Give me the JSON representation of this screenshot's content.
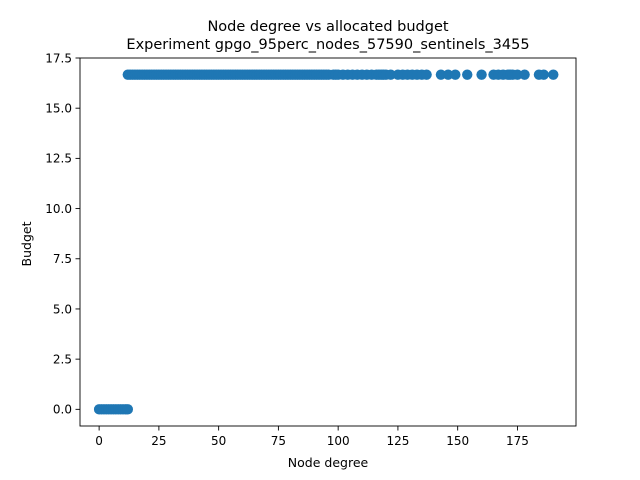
{
  "chart_data": {
    "type": "scatter",
    "title": "Node degree vs allocated budget",
    "subtitle": "Experiment gpgo_95perc_nodes_57590_sentinels_3455",
    "xlabel": "Node degree",
    "ylabel": "Budget",
    "xlim": [
      -8,
      199.5
    ],
    "ylim": [
      -0.83,
      17.5
    ],
    "x_ticks": [
      0,
      25,
      50,
      75,
      100,
      125,
      150,
      175
    ],
    "x_tick_labels": [
      "0",
      "25",
      "50",
      "75",
      "100",
      "125",
      "150",
      "175"
    ],
    "y_ticks": [
      0.0,
      2.5,
      5.0,
      7.5,
      10.0,
      12.5,
      15.0,
      17.5
    ],
    "y_tick_labels": [
      "0.0",
      "2.5",
      "5.0",
      "7.5",
      "10.0",
      "12.5",
      "15.0",
      "17.5"
    ],
    "grid": false,
    "series": [
      {
        "color": "#1f77b4",
        "points": [
          [
            0,
            0
          ],
          [
            1,
            0
          ],
          [
            2,
            0
          ],
          [
            3,
            0
          ],
          [
            4,
            0
          ],
          [
            5,
            0
          ],
          [
            6,
            0
          ],
          [
            7,
            0
          ],
          [
            8,
            0
          ],
          [
            9,
            0
          ],
          [
            10,
            0
          ],
          [
            11,
            0
          ],
          [
            12,
            0
          ],
          [
            12,
            16.67
          ],
          [
            13,
            16.67
          ],
          [
            14,
            16.67
          ],
          [
            15,
            16.67
          ],
          [
            16,
            16.67
          ],
          [
            17,
            16.67
          ],
          [
            18,
            16.67
          ],
          [
            19,
            16.67
          ],
          [
            20,
            16.67
          ],
          [
            21,
            16.67
          ],
          [
            22,
            16.67
          ],
          [
            23,
            16.67
          ],
          [
            24,
            16.67
          ],
          [
            25,
            16.67
          ],
          [
            26,
            16.67
          ],
          [
            27,
            16.67
          ],
          [
            28,
            16.67
          ],
          [
            29,
            16.67
          ],
          [
            30,
            16.67
          ],
          [
            31,
            16.67
          ],
          [
            32,
            16.67
          ],
          [
            33,
            16.67
          ],
          [
            34,
            16.67
          ],
          [
            35,
            16.67
          ],
          [
            36,
            16.67
          ],
          [
            37,
            16.67
          ],
          [
            38,
            16.67
          ],
          [
            39,
            16.67
          ],
          [
            40,
            16.67
          ],
          [
            41,
            16.67
          ],
          [
            42,
            16.67
          ],
          [
            43,
            16.67
          ],
          [
            44,
            16.67
          ],
          [
            45,
            16.67
          ],
          [
            46,
            16.67
          ],
          [
            47,
            16.67
          ],
          [
            48,
            16.67
          ],
          [
            49,
            16.67
          ],
          [
            50,
            16.67
          ],
          [
            51,
            16.67
          ],
          [
            52,
            16.67
          ],
          [
            53,
            16.67
          ],
          [
            54,
            16.67
          ],
          [
            55,
            16.67
          ],
          [
            56,
            16.67
          ],
          [
            57,
            16.67
          ],
          [
            58,
            16.67
          ],
          [
            59,
            16.67
          ],
          [
            60,
            16.67
          ],
          [
            61,
            16.67
          ],
          [
            62,
            16.67
          ],
          [
            63,
            16.67
          ],
          [
            64,
            16.67
          ],
          [
            65,
            16.67
          ],
          [
            66,
            16.67
          ],
          [
            67,
            16.67
          ],
          [
            68,
            16.67
          ],
          [
            69,
            16.67
          ],
          [
            70,
            16.67
          ],
          [
            71,
            16.67
          ],
          [
            72,
            16.67
          ],
          [
            73,
            16.67
          ],
          [
            74,
            16.67
          ],
          [
            75,
            16.67
          ],
          [
            76,
            16.67
          ],
          [
            77,
            16.67
          ],
          [
            78,
            16.67
          ],
          [
            79,
            16.67
          ],
          [
            80,
            16.67
          ],
          [
            81,
            16.67
          ],
          [
            82,
            16.67
          ],
          [
            83,
            16.67
          ],
          [
            84,
            16.67
          ],
          [
            85,
            16.67
          ],
          [
            86,
            16.67
          ],
          [
            87,
            16.67
          ],
          [
            88,
            16.67
          ],
          [
            89,
            16.67
          ],
          [
            90,
            16.67
          ],
          [
            91,
            16.67
          ],
          [
            92,
            16.67
          ],
          [
            93,
            16.67
          ],
          [
            94,
            16.67
          ],
          [
            95,
            16.67
          ],
          [
            96,
            16.67
          ],
          [
            98,
            16.67
          ],
          [
            99,
            16.67
          ],
          [
            100,
            16.67
          ],
          [
            102,
            16.67
          ],
          [
            104,
            16.67
          ],
          [
            106,
            16.67
          ],
          [
            108,
            16.67
          ],
          [
            110,
            16.67
          ],
          [
            112,
            16.67
          ],
          [
            114,
            16.67
          ],
          [
            116,
            16.67
          ],
          [
            117,
            16.67
          ],
          [
            118,
            16.67
          ],
          [
            119,
            16.67
          ],
          [
            120,
            16.67
          ],
          [
            122,
            16.67
          ],
          [
            125,
            16.67
          ],
          [
            127,
            16.67
          ],
          [
            129,
            16.67
          ],
          [
            131,
            16.67
          ],
          [
            133,
            16.67
          ],
          [
            135,
            16.67
          ],
          [
            137,
            16.67
          ],
          [
            143,
            16.67
          ],
          [
            146,
            16.67
          ],
          [
            149,
            16.67
          ],
          [
            154,
            16.67
          ],
          [
            160,
            16.67
          ],
          [
            165,
            16.67
          ],
          [
            167,
            16.67
          ],
          [
            169,
            16.67
          ],
          [
            171,
            16.67
          ],
          [
            172,
            16.67
          ],
          [
            173,
            16.67
          ],
          [
            175,
            16.67
          ],
          [
            178,
            16.67
          ],
          [
            184,
            16.67
          ],
          [
            186,
            16.67
          ],
          [
            190,
            16.67
          ]
        ]
      }
    ]
  }
}
